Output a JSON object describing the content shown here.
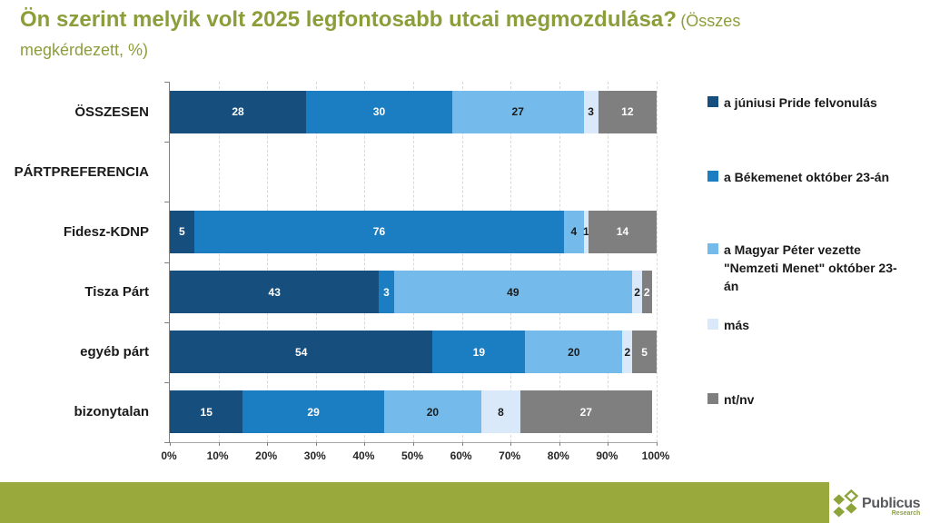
{
  "title": {
    "bold": "Ön szerint melyik volt 2025 legfontosabb utcai megmozdulása?",
    "normal_inline": "(Összes",
    "normal_line2": "megkérdezett, %)",
    "color": "#8C9E3A"
  },
  "chart_data": {
    "type": "bar",
    "subtype": "horizontal-stacked",
    "stacked": true,
    "title": "Ön szerint melyik volt 2025 legfontosabb utcai megmozdulása? (Összes megkérdezett, %)",
    "categories": [
      "ÖSSZESEN",
      "PÁRTPREFERENCIA",
      "Fidesz-KDNP",
      "Tisza Párt",
      "egyéb párt",
      "bizonytalan"
    ],
    "series": [
      {
        "name": "a júniusi Pride felvonulás",
        "color": "#164F7E",
        "label_color": "#ffffff",
        "values": [
          28,
          null,
          5,
          43,
          54,
          15
        ]
      },
      {
        "name": "a Békemenet október 23-án",
        "color": "#1B7EC2",
        "label_color": "#ffffff",
        "values": [
          30,
          null,
          76,
          3,
          19,
          29
        ]
      },
      {
        "name": "a Magyar Péter vezette \"Nemzeti Menet\" október 23-án",
        "color": "#74BBEC",
        "label_color": "#1a1a1a",
        "values": [
          27,
          null,
          4,
          49,
          20,
          20
        ]
      },
      {
        "name": "más",
        "color": "#D9E9FA",
        "label_color": "#1a1a1a",
        "values": [
          3,
          null,
          1,
          2,
          2,
          8
        ]
      },
      {
        "name": "nt/nv",
        "color": "#7F7F7F",
        "label_color": "#ffffff",
        "values": [
          12,
          null,
          14,
          2,
          5,
          27
        ]
      }
    ],
    "x_ticks": [
      "0%",
      "10%",
      "20%",
      "30%",
      "40%",
      "50%",
      "60%",
      "70%",
      "80%",
      "90%",
      "100%"
    ],
    "xlim": [
      0,
      100
    ],
    "grid": "vertical-dashed",
    "legend_position": "right"
  },
  "footer": {
    "brand": "Publicus",
    "brand_sub": "Research",
    "band_color": "#9AA93C",
    "logo_green": "#8DA33B",
    "brand_text_color": "#58595B"
  }
}
